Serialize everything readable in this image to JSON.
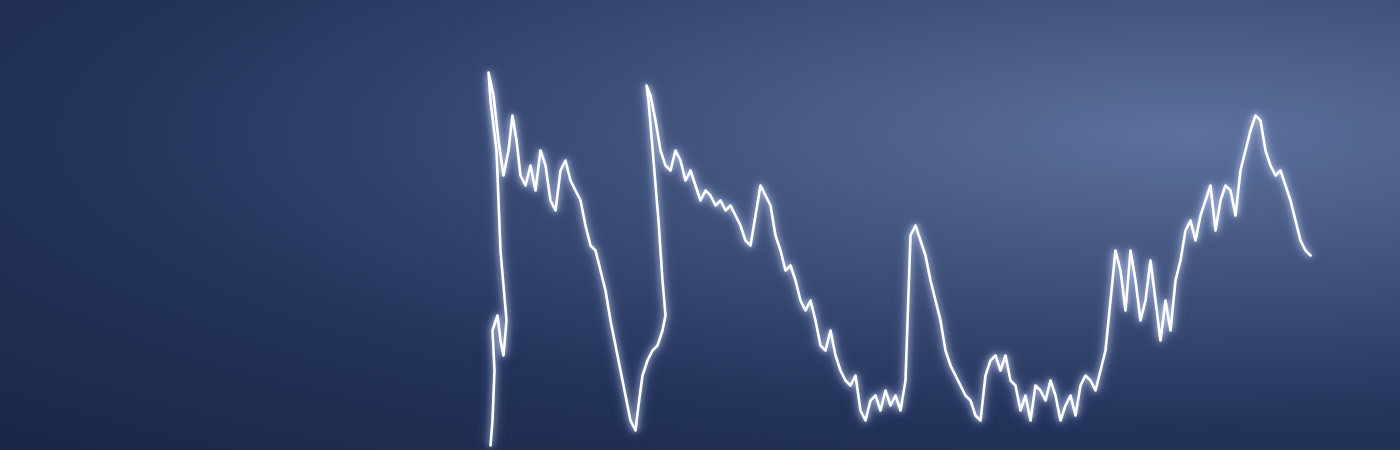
{
  "chart_data": {
    "type": "line",
    "x": [
      490,
      492,
      494,
      492,
      497,
      500,
      503,
      506,
      500,
      496,
      490,
      488,
      493,
      498,
      503,
      508,
      512,
      516,
      520,
      525,
      530,
      535,
      540,
      545,
      550,
      555,
      560,
      565,
      570,
      575,
      580,
      585,
      590,
      595,
      600,
      605,
      610,
      615,
      620,
      625,
      630,
      635,
      638,
      642,
      647,
      652,
      657,
      662,
      665,
      662,
      658,
      653,
      648,
      646,
      650,
      655,
      660,
      665,
      670,
      675,
      680,
      685,
      690,
      695,
      700,
      705,
      710,
      715,
      720,
      725,
      730,
      735,
      740,
      745,
      750,
      755,
      760,
      765,
      770,
      775,
      780,
      785,
      790,
      795,
      800,
      805,
      810,
      815,
      820,
      825,
      830,
      835,
      840,
      845,
      850,
      855,
      860,
      865,
      870,
      875,
      880,
      885,
      890,
      895,
      900,
      905,
      910,
      915,
      920,
      925,
      930,
      935,
      940,
      945,
      950,
      955,
      960,
      965,
      970,
      975,
      980,
      985,
      990,
      995,
      1000,
      1005,
      1010,
      1015,
      1020,
      1025,
      1030,
      1035,
      1040,
      1045,
      1050,
      1055,
      1060,
      1065,
      1070,
      1075,
      1080,
      1085,
      1090,
      1095,
      1100,
      1105,
      1110,
      1115,
      1120,
      1125,
      1130,
      1135,
      1140,
      1145,
      1150,
      1155,
      1160,
      1165,
      1170,
      1175,
      1180,
      1185,
      1190,
      1195,
      1200,
      1205,
      1210,
      1215,
      1220,
      1225,
      1230,
      1235,
      1240,
      1245,
      1250,
      1255,
      1260,
      1265,
      1270,
      1275,
      1280,
      1285,
      1290,
      1295,
      1300,
      1305,
      1310
    ],
    "values": [
      5,
      30,
      80,
      120,
      135,
      110,
      95,
      130,
      200,
      300,
      350,
      378,
      355,
      310,
      275,
      300,
      335,
      310,
      275,
      265,
      285,
      260,
      300,
      285,
      250,
      240,
      280,
      290,
      270,
      260,
      250,
      225,
      205,
      200,
      180,
      160,
      130,
      105,
      80,
      55,
      30,
      20,
      45,
      75,
      90,
      100,
      105,
      120,
      135,
      170,
      230,
      290,
      350,
      365,
      355,
      330,
      300,
      285,
      280,
      300,
      290,
      270,
      280,
      265,
      250,
      260,
      255,
      245,
      250,
      240,
      245,
      235,
      225,
      210,
      205,
      235,
      265,
      255,
      245,
      215,
      200,
      180,
      185,
      170,
      150,
      140,
      150,
      130,
      105,
      100,
      120,
      95,
      80,
      70,
      65,
      75,
      40,
      30,
      50,
      55,
      40,
      60,
      45,
      55,
      40,
      70,
      215,
      225,
      210,
      195,
      170,
      150,
      130,
      100,
      85,
      75,
      65,
      55,
      50,
      35,
      30,
      75,
      90,
      95,
      80,
      95,
      70,
      65,
      40,
      55,
      30,
      65,
      60,
      50,
      70,
      55,
      30,
      45,
      55,
      35,
      65,
      75,
      70,
      60,
      80,
      100,
      150,
      200,
      180,
      140,
      200,
      170,
      130,
      150,
      190,
      150,
      110,
      150,
      120,
      170,
      190,
      220,
      230,
      210,
      235,
      250,
      265,
      220,
      250,
      265,
      260,
      235,
      280,
      300,
      320,
      335,
      330,
      300,
      285,
      275,
      280,
      265,
      250,
      230,
      210,
      200,
      195
    ],
    "color": "#ffffff",
    "xlim": [
      0,
      1400
    ],
    "ylim": [
      0,
      450
    ],
    "tick_labels": false,
    "grid": false
  }
}
